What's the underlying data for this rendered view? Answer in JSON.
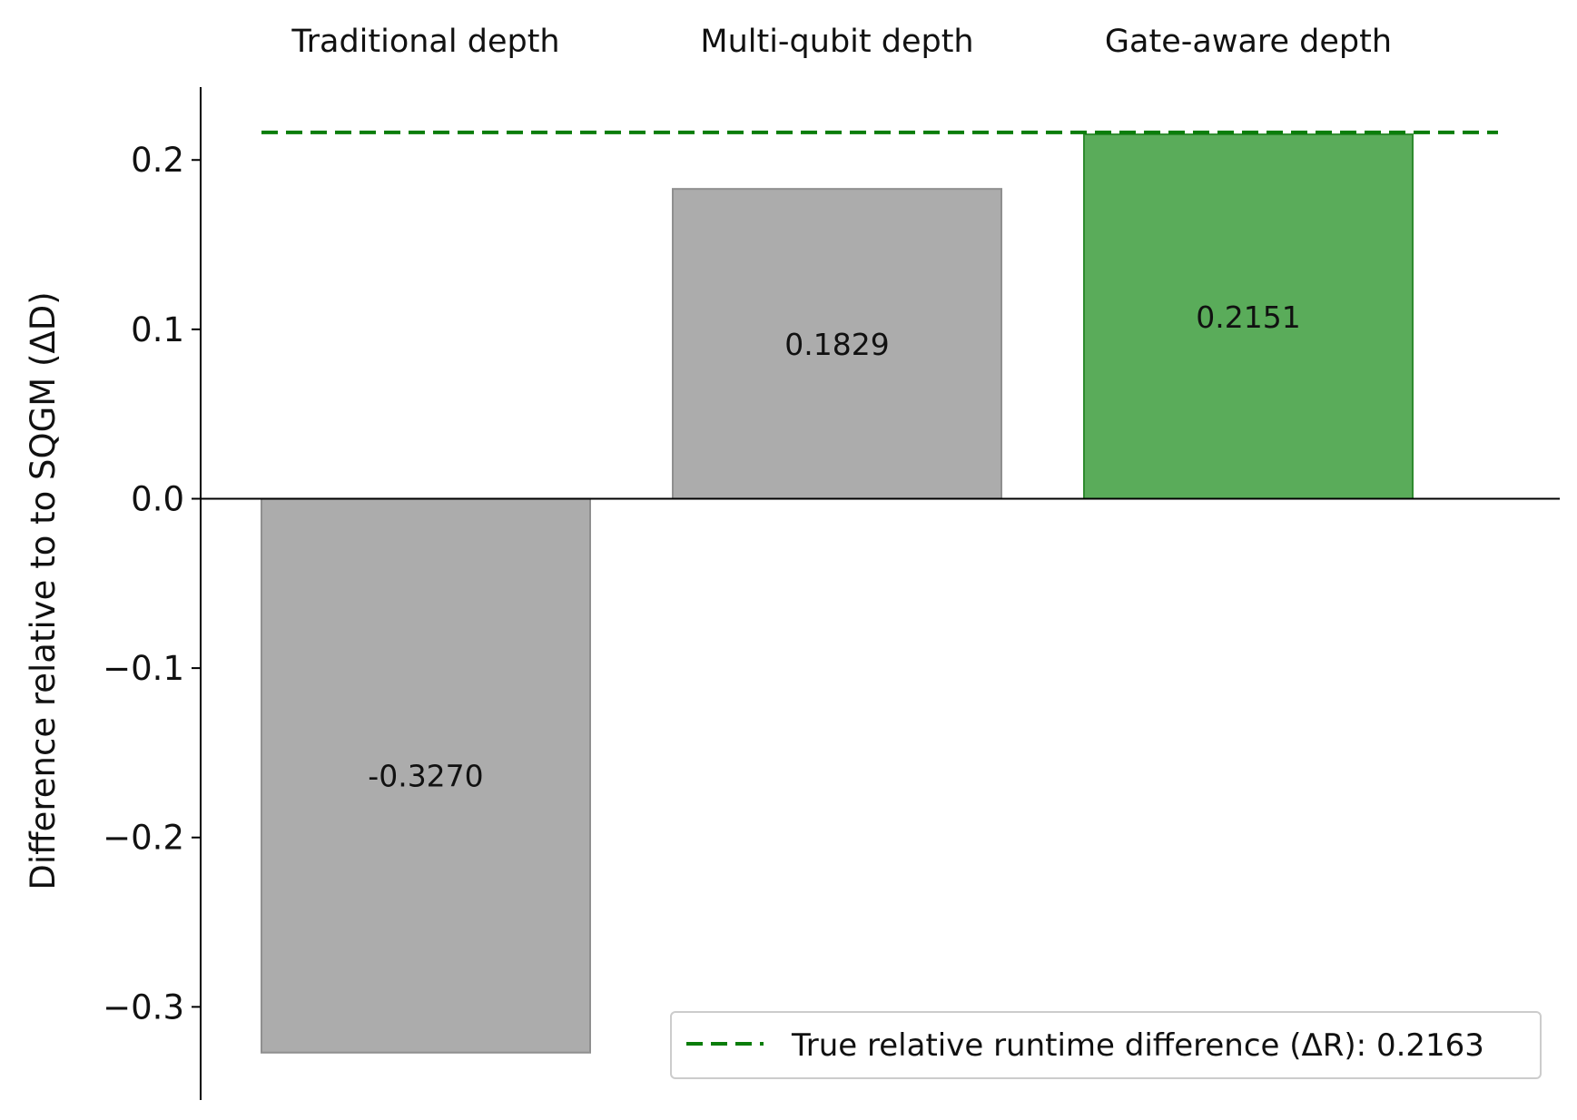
{
  "chart_data": {
    "type": "bar",
    "categories": [
      "Traditional depth",
      "Multi-qubit depth",
      "Gate-aware depth"
    ],
    "values": [
      -0.327,
      0.1829,
      0.2151
    ],
    "value_labels": [
      "-0.3270",
      "0.1829",
      "0.2151"
    ],
    "bar_colors": [
      "#acacac",
      "#acacac",
      "#5aac5a"
    ],
    "bar_edge_colors": [
      "#8f8f8f",
      "#8f8f8f",
      "#2e8b2e"
    ],
    "ylabel": "Difference relative to to SQGM (ΔD)",
    "xlabel": "",
    "ylim": [
      -0.355,
      0.243
    ],
    "yticks": [
      0.2,
      0.1,
      0.0,
      -0.1,
      -0.2,
      -0.3
    ],
    "ytick_labels": [
      "0.2",
      "0.1",
      "0.0",
      "−0.1",
      "−0.2",
      "−0.3"
    ],
    "category_labels_position": "top",
    "reference_line": {
      "value": 0.2163,
      "style": "dashed",
      "color": "#0a7d0a",
      "label": "True relative runtime difference (ΔR): 0.2163"
    },
    "legend_placement": "bottom-right",
    "grid": false
  }
}
